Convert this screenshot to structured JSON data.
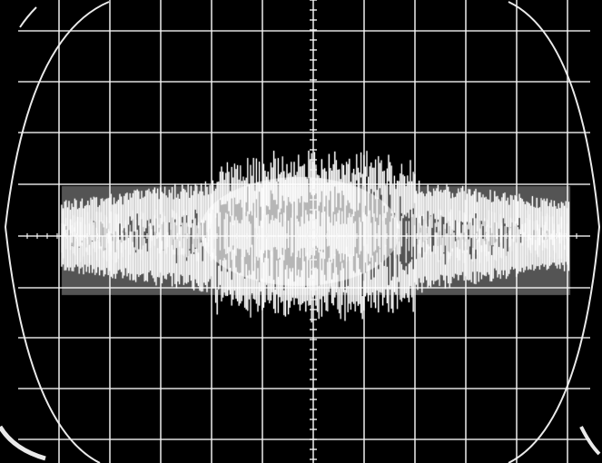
{
  "screen": {
    "description_icon": "oscilloscope-screen-icon",
    "colors": {
      "background": "#000000",
      "trace": "#ffffff",
      "graticule": "#f2f2f2",
      "bezel": "#eaeaea"
    },
    "graticule": {
      "horizontal_divisions": 10,
      "vertical_divisions": 8,
      "minor_ticks_per_division": 5
    }
  }
}
